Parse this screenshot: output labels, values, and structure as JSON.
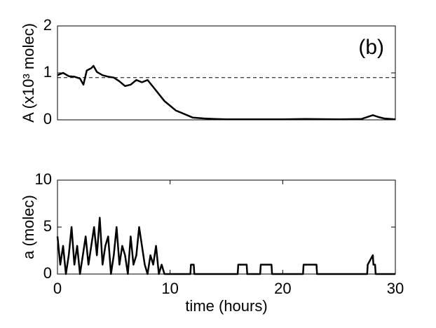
{
  "chart_data": [
    {
      "type": "line",
      "annotation": "(b)",
      "ylabel": "A (x10³ molec)",
      "x": [
        0,
        0.5,
        1,
        1.5,
        2,
        2.3,
        2.6,
        3,
        3.2,
        3.5,
        4,
        4.5,
        5,
        5.5,
        6,
        6.5,
        7,
        7.5,
        8,
        8.5,
        9,
        9.5,
        10,
        10.5,
        11,
        11.5,
        12,
        13,
        14,
        15,
        17,
        20,
        22,
        25,
        27,
        28,
        28.5,
        29,
        30
      ],
      "series": [
        {
          "color": "#000000",
          "values": [
            0.95,
            1.0,
            0.93,
            0.92,
            0.88,
            0.75,
            1.05,
            1.1,
            1.15,
            1.02,
            0.95,
            0.92,
            0.9,
            0.82,
            0.72,
            0.75,
            0.85,
            0.8,
            0.85,
            0.7,
            0.55,
            0.4,
            0.3,
            0.2,
            0.15,
            0.1,
            0.05,
            0.03,
            0.02,
            0.01,
            0.01,
            0.01,
            0.02,
            0.01,
            0.02,
            0.1,
            0.06,
            0.03,
            0.01
          ]
        }
      ],
      "reference_line": 0.9,
      "xlim": [
        0,
        30
      ],
      "ylim": [
        0,
        2
      ],
      "yticks": [
        0,
        1,
        2
      ]
    },
    {
      "type": "line",
      "ylabel": "a (molec)",
      "xlabel": "time (hours)",
      "x": [
        0,
        0.25,
        0.5,
        0.75,
        1,
        1.25,
        1.5,
        1.75,
        2,
        2.25,
        2.5,
        2.75,
        3,
        3.25,
        3.5,
        3.75,
        4,
        4.25,
        4.5,
        4.75,
        5,
        5.25,
        5.5,
        5.75,
        6,
        6.25,
        6.5,
        6.75,
        7,
        7.25,
        7.5,
        7.75,
        8,
        8.25,
        8.5,
        8.75,
        9,
        9.25,
        9.5,
        10,
        11.8,
        11.85,
        12.1,
        12.15,
        16,
        16.05,
        16.8,
        16.85,
        18,
        18.05,
        19,
        19.05,
        21.8,
        21.85,
        23,
        23.05,
        27.5,
        27.55,
        28,
        28.05,
        28.2,
        28.25,
        30
      ],
      "series": [
        {
          "color": "#000000",
          "values": [
            4,
            1,
            3,
            0,
            2,
            5,
            1,
            3,
            0,
            2,
            4,
            1,
            3,
            5,
            2,
            6,
            1,
            3,
            4,
            0,
            2,
            5,
            1,
            3,
            2,
            0,
            4,
            1,
            2,
            5,
            3,
            1,
            0,
            2,
            1,
            3,
            0,
            1,
            0,
            0,
            0,
            1,
            1,
            0,
            0,
            1,
            1,
            0,
            0,
            1,
            1,
            0,
            0,
            1,
            1,
            0,
            0,
            1,
            2,
            1,
            1,
            0,
            0
          ]
        }
      ],
      "xlim": [
        0,
        30
      ],
      "xticks": [
        0,
        10,
        20,
        30
      ],
      "ylim": [
        0,
        10
      ],
      "yticks": [
        0,
        5,
        10
      ]
    }
  ]
}
